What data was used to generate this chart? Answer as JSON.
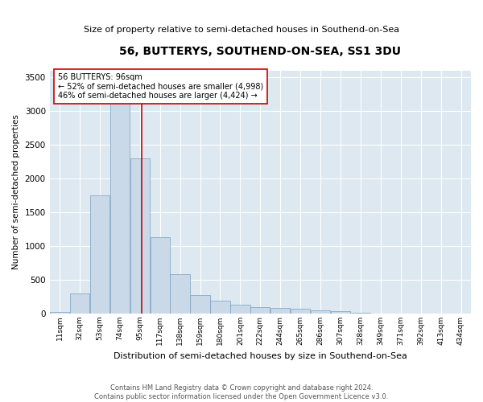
{
  "title": "56, BUTTERYS, SOUTHEND-ON-SEA, SS1 3DU",
  "subtitle": "Size of property relative to semi-detached houses in Southend-on-Sea",
  "xlabel": "Distribution of semi-detached houses by size in Southend-on-Sea",
  "ylabel": "Number of semi-detached properties",
  "footer_line1": "Contains HM Land Registry data © Crown copyright and database right 2024.",
  "footer_line2": "Contains public sector information licensed under the Open Government Licence v3.0.",
  "annotation_line1": "56 BUTTERYS: 96sqm",
  "annotation_line2": "← 52% of semi-detached houses are smaller (4,998)",
  "annotation_line3": "46% of semi-detached houses are larger (4,424) →",
  "property_size_sqm": 96,
  "bar_color": "#c9d9e8",
  "bar_edge_color": "#7a9fc0",
  "vline_color": "#cc0000",
  "background_color": "#dde8f0",
  "ylim": [
    0,
    3600
  ],
  "yticks": [
    0,
    500,
    1000,
    1500,
    2000,
    2500,
    3000,
    3500
  ],
  "bin_labels": [
    "11sqm",
    "32sqm",
    "53sqm",
    "74sqm",
    "95sqm",
    "117sqm",
    "138sqm",
    "159sqm",
    "180sqm",
    "201sqm",
    "222sqm",
    "244sqm",
    "265sqm",
    "286sqm",
    "307sqm",
    "328sqm",
    "349sqm",
    "371sqm",
    "392sqm",
    "413sqm",
    "434sqm"
  ],
  "bin_edges": [
    0,
    21,
    42,
    63,
    84,
    105,
    126,
    147,
    168,
    189,
    210,
    231,
    252,
    273,
    294,
    315,
    336,
    357,
    378,
    399,
    420,
    441
  ],
  "bar_heights": [
    20,
    300,
    1750,
    3150,
    2300,
    1130,
    580,
    270,
    185,
    130,
    100,
    85,
    70,
    50,
    30,
    8,
    5,
    3,
    2,
    1,
    0
  ]
}
